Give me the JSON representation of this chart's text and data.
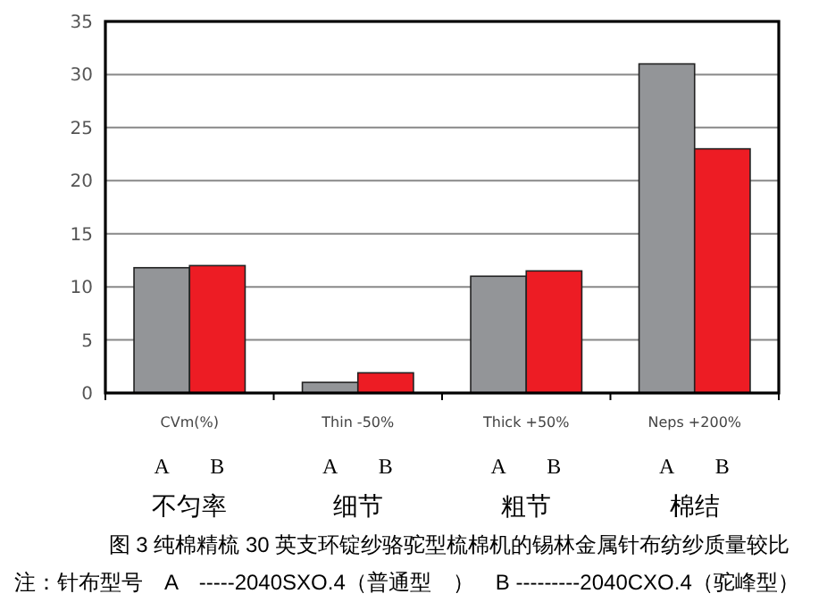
{
  "chart_data": {
    "type": "bar",
    "title": "图 3 纯棉精梳 30 英支环锭纱骆驼型梳棉机的锡林金属针布纺纱质量较比",
    "categories": [
      "CVm(%)",
      "Thin -50%",
      "Thick +50%",
      "Neps +200%"
    ],
    "series": [
      {
        "name": "A",
        "color": "#939598",
        "values": [
          11.8,
          1.0,
          11.0,
          31
        ]
      },
      {
        "name": "B",
        "color": "#ed1c24",
        "values": [
          12.0,
          1.9,
          11.5,
          23
        ]
      }
    ],
    "ylim": [
      0,
      35
    ],
    "yticks": [
      0,
      5,
      10,
      15,
      20,
      25,
      30,
      35
    ],
    "grid": "y",
    "annotations": [
      "不匀率",
      "细节",
      "粗节",
      "棉结",
      "注：针布型号　A　-----2040SXO.4（普通型　）　B ---------2040CXO.4（驼峰型）"
    ]
  }
}
